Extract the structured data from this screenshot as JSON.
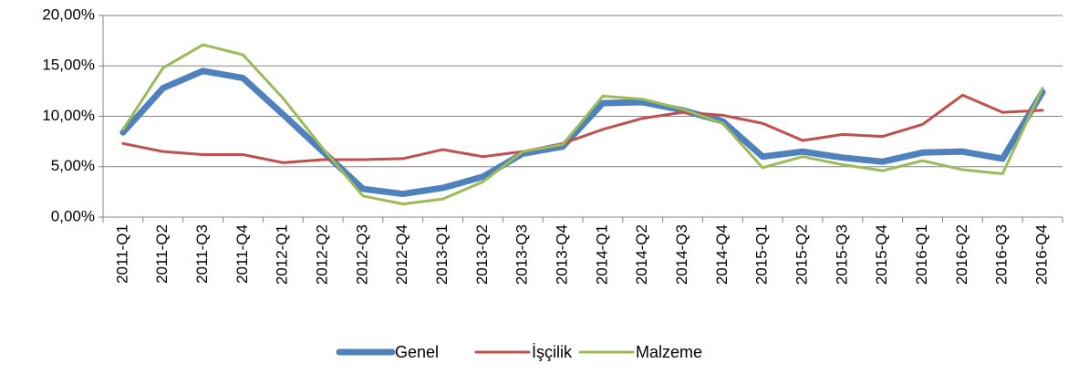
{
  "chart_data": {
    "type": "line",
    "categories": [
      "2011-Q1",
      "2011-Q2",
      "2011-Q3",
      "2011-Q4",
      "2012-Q1",
      "2012-Q2",
      "2012-Q3",
      "2012-Q4",
      "2013-Q1",
      "2013-Q2",
      "2013-Q3",
      "2013-Q4",
      "2014-Q1",
      "2014-Q2",
      "2014-Q3",
      "2014-Q4",
      "2015-Q1",
      "2015-Q2",
      "2015-Q3",
      "2015-Q4",
      "2016-Q1",
      "2016-Q2",
      "2016-Q3",
      "2016-Q4"
    ],
    "series": [
      {
        "name": "Genel",
        "color": "#4f81bd",
        "values": [
          8.4,
          12.8,
          14.5,
          13.8,
          10.2,
          6.5,
          2.8,
          2.3,
          2.9,
          4.0,
          6.3,
          7.0,
          11.3,
          11.4,
          10.6,
          9.5,
          6.0,
          6.5,
          5.9,
          5.5,
          6.4,
          6.5,
          5.8,
          12.4
        ]
      },
      {
        "name": "İşçilik",
        "color": "#c0504d",
        "values": [
          7.3,
          6.5,
          6.2,
          6.2,
          5.4,
          5.7,
          5.7,
          5.8,
          6.7,
          6.0,
          6.5,
          7.3,
          8.7,
          9.8,
          10.4,
          10.1,
          9.3,
          7.6,
          8.2,
          8.0,
          9.2,
          12.1,
          10.4,
          10.6
        ]
      },
      {
        "name": "Malzeme",
        "color": "#9bbb59",
        "values": [
          8.7,
          14.8,
          17.1,
          16.1,
          11.8,
          6.8,
          2.1,
          1.3,
          1.8,
          3.5,
          6.5,
          7.2,
          12.0,
          11.7,
          10.7,
          9.3,
          4.9,
          6.0,
          5.2,
          4.6,
          5.6,
          4.7,
          4.3,
          12.8
        ]
      }
    ],
    "ylim": [
      0,
      20
    ],
    "yticks": [
      {
        "value": 0,
        "label": "0,00%"
      },
      {
        "value": 5,
        "label": "5,00%"
      },
      {
        "value": 10,
        "label": "10,00%"
      },
      {
        "value": 15,
        "label": "15,00%"
      },
      {
        "value": 20,
        "label": "20,00%"
      }
    ],
    "grid": true,
    "legend": "bottom"
  }
}
